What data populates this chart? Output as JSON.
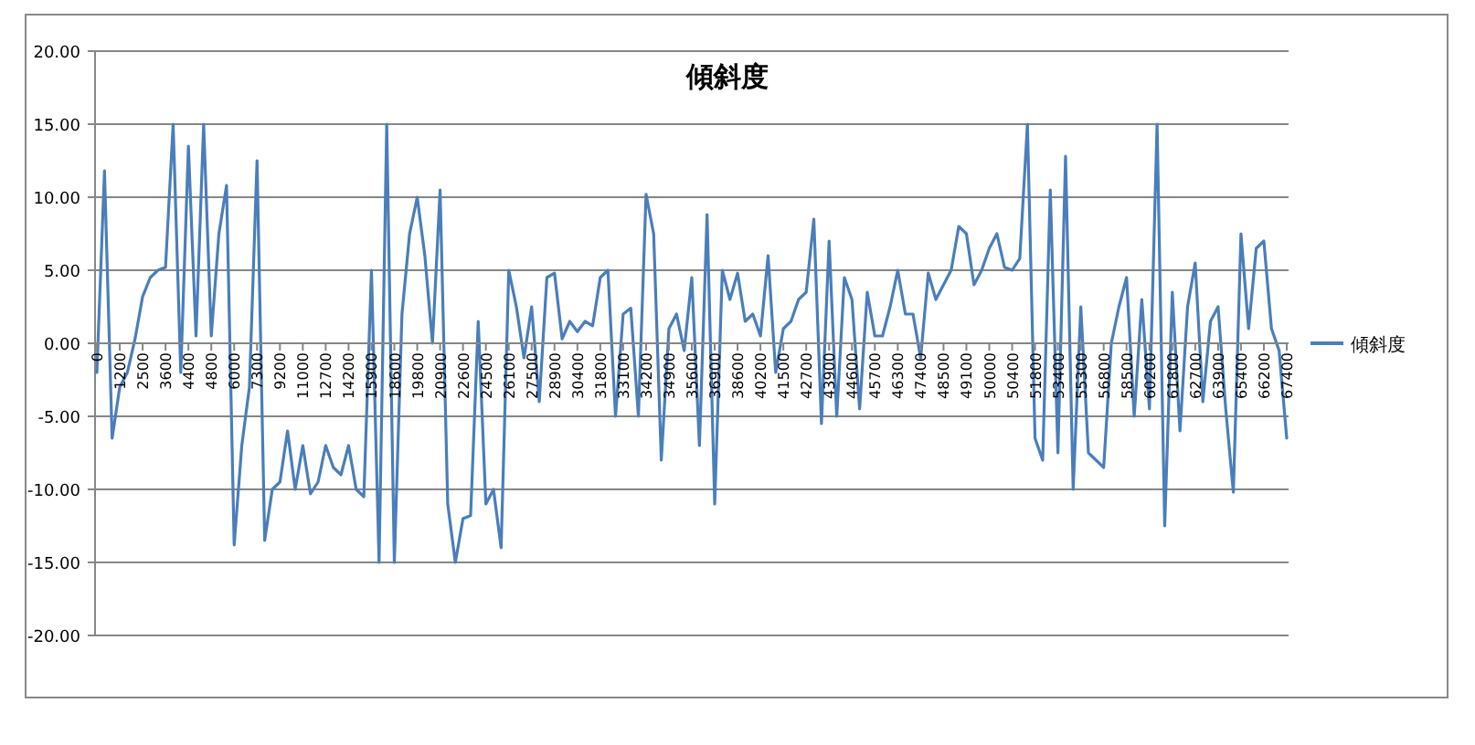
{
  "chart_data": {
    "type": "line",
    "title": "傾斜度",
    "categories": [
      "0",
      null,
      null,
      "1200",
      null,
      null,
      "2500",
      null,
      null,
      "3600",
      null,
      null,
      "4400",
      null,
      null,
      "4800",
      null,
      null,
      "6000",
      null,
      null,
      "7300",
      null,
      null,
      "9200",
      null,
      null,
      "11000",
      null,
      null,
      "12700",
      null,
      null,
      "14200",
      null,
      null,
      "15900",
      null,
      null,
      "18600",
      null,
      null,
      "19800",
      null,
      null,
      "20900",
      null,
      null,
      "22600",
      null,
      null,
      "24500",
      null,
      null,
      "26100",
      null,
      null,
      "27500",
      null,
      null,
      "28900",
      null,
      null,
      "30400",
      null,
      null,
      "31800",
      null,
      null,
      "33100",
      null,
      null,
      "34200",
      null,
      null,
      "34900",
      null,
      null,
      "35600",
      null,
      null,
      "36900",
      null,
      null,
      "38600",
      null,
      null,
      "40200",
      null,
      null,
      "41500",
      null,
      null,
      "42700",
      null,
      null,
      "43900",
      null,
      null,
      "44600",
      null,
      null,
      "45700",
      null,
      null,
      "46300",
      null,
      null,
      "47400",
      null,
      null,
      "48500",
      null,
      null,
      "49100",
      null,
      null,
      "50000",
      null,
      null,
      "50400",
      null,
      null,
      "51800",
      null,
      null,
      "53400",
      null,
      null,
      "55300",
      null,
      null,
      "56800",
      null,
      null,
      "58500",
      null,
      null,
      "60200",
      null,
      null,
      "61800",
      null,
      null,
      "62700",
      null,
      null,
      "63900",
      null,
      null,
      "65400",
      null,
      null,
      "66200",
      null,
      null,
      "67400"
    ],
    "series": [
      {
        "name": "傾斜度",
        "color": "#4a7ebb",
        "values": [
          -2,
          11.8,
          -6.5,
          -3,
          -2,
          0.3,
          3.2,
          4.5,
          5,
          5.2,
          15,
          -2,
          13.5,
          0.5,
          15,
          0.5,
          7.5,
          10.8,
          -13.8,
          -7,
          -3,
          12.5,
          -13.5,
          -10,
          -9.5,
          -6,
          -10,
          -7,
          -10.3,
          -9.5,
          -7,
          -8.5,
          -9,
          -7,
          -10,
          -10.5,
          5,
          -15,
          15,
          -15,
          2,
          7.5,
          10,
          6,
          0,
          10.5,
          -11,
          -15,
          -12,
          -11.8,
          1.5,
          -11,
          -10,
          -14,
          5,
          2.5,
          -1,
          2.5,
          -4,
          4.5,
          4.8,
          0.3,
          1.5,
          0.8,
          1.5,
          1.2,
          4.5,
          5,
          -5,
          2,
          2.4,
          -5,
          10.2,
          7.5,
          -8,
          1,
          2,
          -0.5,
          4.5,
          -7,
          8.8,
          -11,
          5,
          3,
          4.8,
          1.5,
          2,
          0.5,
          6,
          -2,
          1,
          1.5,
          3,
          3.5,
          8.5,
          -5.5,
          7,
          -5,
          4.5,
          3,
          -4.5,
          3.5,
          0.5,
          0.5,
          2.5,
          5,
          2,
          2,
          -1,
          4.8,
          3,
          4,
          5,
          8,
          7.5,
          4,
          5,
          6.5,
          7.5,
          5.2,
          5,
          5.8,
          15,
          -6.5,
          -8,
          10.5,
          -7.5,
          12.8,
          -10,
          2.5,
          -7.5,
          -8,
          -8.5,
          0,
          2.5,
          4.5,
          -5,
          3,
          -4.5,
          15,
          -12.5,
          3.5,
          -6,
          2.5,
          5.5,
          -4,
          1.5,
          2.5,
          -4.5,
          -10.2,
          7.5,
          1,
          6.5,
          7,
          1,
          -0.5,
          -6.5
        ]
      }
    ],
    "ylim": [
      -20,
      20
    ],
    "yticks": [
      {
        "value": -20,
        "label": "-20.00"
      },
      {
        "value": -15,
        "label": "-15.00"
      },
      {
        "value": -10,
        "label": "-10.00"
      },
      {
        "value": -5,
        "label": "-5.00"
      },
      {
        "value": 0,
        "label": "0.00"
      },
      {
        "value": 5,
        "label": "5.00"
      },
      {
        "value": 10,
        "label": "10.00"
      },
      {
        "value": 15,
        "label": "15.00"
      },
      {
        "value": 20,
        "label": "20.00"
      }
    ],
    "grid": "y",
    "legend": "right",
    "marker": "none",
    "line_style": "solid"
  }
}
